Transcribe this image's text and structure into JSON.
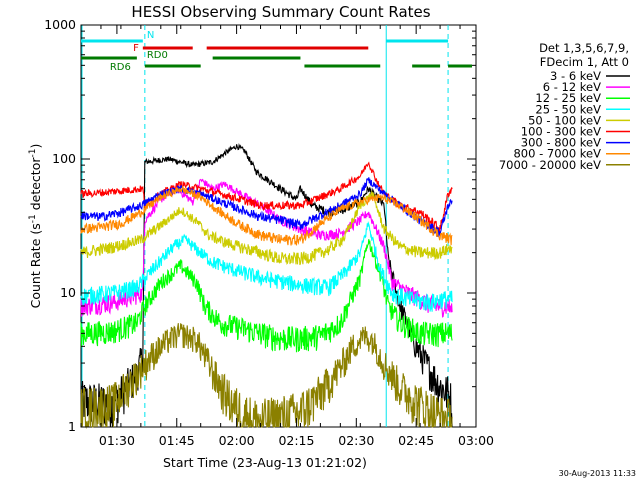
{
  "chart_data": {
    "type": "line",
    "title": "HESSI Observing Summary Count Rates",
    "xlabel": "Start Time (23-Aug-13 01:21:02)",
    "ylabel": "Count Rate (s",
    "ylabel_sup1": "-1",
    "ylabel_mid": " detector",
    "ylabel_sup2": "-1",
    "ylabel_end": ")",
    "yscale": "log",
    "ylim": [
      1,
      1000
    ],
    "xlim_minutes": [
      0,
      99
    ],
    "x_ticks": [
      {
        "t": 9,
        "label": "01:30"
      },
      {
        "t": 24,
        "label": "01:45"
      },
      {
        "t": 39,
        "label": "02:00"
      },
      {
        "t": 54,
        "label": "02:15"
      },
      {
        "t": 69,
        "label": "02:30"
      },
      {
        "t": 84,
        "label": "02:45"
      },
      {
        "t": 99,
        "label": "03:00"
      }
    ],
    "y_ticks": [
      {
        "v": 1,
        "label": "1"
      },
      {
        "v": 10,
        "label": "10"
      },
      {
        "v": 100,
        "label": "100"
      },
      {
        "v": 1000,
        "label": "1000"
      }
    ],
    "legend_header": [
      "Det 1,3,5,6,7,9,",
      "FDecim 1, Att 0"
    ],
    "timestamp": "30-Aug-2013 11:33",
    "night_lines_t": [
      16,
      76.5,
      92
    ],
    "flag_bars": [
      {
        "label": "N",
        "color": "#00e5ee",
        "segments": [
          [
            0,
            15.5
          ],
          [
            76.5,
            92
          ]
        ]
      },
      {
        "label": "F",
        "color": "#e00000",
        "segments": [
          [
            15.5,
            28
          ],
          [
            31.5,
            72
          ]
        ]
      },
      {
        "label": "RD0",
        "color": "#007a00",
        "segments": [
          [
            0,
            14
          ],
          [
            33,
            55
          ]
        ]
      },
      {
        "label": "RD6",
        "color": "#007a00",
        "segments": [
          [
            16,
            30
          ],
          [
            56,
            75
          ],
          [
            83,
            90
          ],
          [
            92,
            98
          ]
        ]
      }
    ],
    "series": [
      {
        "name": "3 - 6 keV",
        "color": "#000000",
        "x": [
          0,
          8,
          14,
          15.5,
          16,
          22,
          28,
          33,
          36,
          39,
          41,
          44,
          50,
          54,
          55,
          58,
          62,
          66,
          70,
          72,
          76,
          77,
          80,
          84,
          88,
          90,
          92,
          93
        ],
        "y": [
          1.6,
          1.5,
          2.5,
          3.5,
          95,
          100,
          90,
          95,
          110,
          125,
          115,
          80,
          60,
          50,
          60,
          45,
          40,
          42,
          48,
          60,
          45,
          18,
          8,
          4,
          2.5,
          2,
          1.8,
          1.5
        ]
      },
      {
        "name": "6 - 12 keV",
        "color": "#ff00ff",
        "x": [
          0,
          8,
          15.5,
          16,
          20,
          24,
          28,
          30,
          33,
          36,
          40,
          45,
          50,
          55,
          60,
          65,
          70,
          72,
          74,
          76,
          78,
          82,
          88,
          92,
          93
        ],
        "y": [
          8,
          8.5,
          10,
          35,
          50,
          60,
          48,
          70,
          60,
          65,
          55,
          45,
          35,
          30,
          27,
          28,
          35,
          40,
          30,
          22,
          12,
          10,
          8,
          8,
          7.5
        ]
      },
      {
        "name": "12 - 25 keV",
        "color": "#00ff00",
        "x": [
          0,
          8,
          14,
          16,
          20,
          25,
          29,
          31,
          35,
          40,
          45,
          50,
          55,
          60,
          65,
          70,
          72,
          75,
          77,
          80,
          85,
          90,
          93
        ],
        "y": [
          5,
          5.2,
          6,
          8,
          12,
          16,
          12,
          8,
          6,
          5.5,
          5,
          4.6,
          4.6,
          4.8,
          6,
          13,
          25,
          14,
          8,
          6,
          5,
          5,
          5
        ]
      },
      {
        "name": "25 - 50 keV",
        "color": "#00ffff",
        "x": [
          0,
          8,
          14,
          18,
          23,
          26,
          30,
          33,
          38,
          45,
          55,
          62,
          66,
          70,
          72,
          75,
          78,
          82,
          88,
          90,
          93
        ],
        "y": [
          9.5,
          10,
          11,
          15,
          22,
          25,
          20,
          17,
          15,
          13,
          11.5,
          11,
          14,
          20,
          33,
          15,
          10,
          9,
          8.5,
          9,
          9
        ]
      },
      {
        "name": "50 - 100 keV",
        "color": "#cccc00",
        "x": [
          0,
          8,
          15,
          20,
          25,
          29,
          32,
          36,
          40,
          45,
          50,
          55,
          58,
          62,
          66,
          70,
          73,
          76,
          80,
          85,
          90,
          93
        ],
        "y": [
          20,
          22,
          25,
          32,
          42,
          34,
          27,
          24,
          22,
          20,
          18,
          18,
          19,
          21,
          26,
          45,
          55,
          30,
          22,
          20,
          20,
          22
        ]
      },
      {
        "name": "100 - 300 keV",
        "color": "#ff0000",
        "x": [
          0,
          5,
          10,
          15.5,
          16,
          20,
          25,
          30,
          35,
          40,
          45,
          50,
          55,
          60,
          65,
          70,
          72,
          74,
          76,
          80,
          85,
          90,
          92,
          93
        ],
        "y": [
          55,
          56,
          58,
          60,
          45,
          55,
          65,
          60,
          55,
          50,
          45,
          45,
          45,
          52,
          60,
          75,
          95,
          70,
          55,
          45,
          40,
          30,
          55,
          60
        ]
      },
      {
        "name": "300 - 800 keV",
        "color": "#0000ff",
        "x": [
          0,
          5,
          10,
          15,
          20,
          25,
          30,
          35,
          40,
          45,
          50,
          55,
          60,
          65,
          70,
          72,
          76,
          80,
          85,
          90,
          92,
          93
        ],
        "y": [
          38,
          37,
          40,
          45,
          55,
          60,
          55,
          48,
          42,
          37,
          35,
          32,
          38,
          45,
          55,
          70,
          55,
          45,
          35,
          28,
          45,
          48
        ]
      },
      {
        "name": "800 - 7000 keV",
        "color": "#ff8800",
        "x": [
          0,
          5,
          10,
          15,
          20,
          25,
          30,
          35,
          40,
          45,
          50,
          55,
          60,
          65,
          70,
          75,
          80,
          85,
          90,
          93
        ],
        "y": [
          30,
          31,
          33,
          40,
          52,
          60,
          52,
          40,
          32,
          27,
          25,
          25,
          33,
          42,
          48,
          52,
          45,
          35,
          27,
          25
        ]
      },
      {
        "name": "7000 - 20000 keV",
        "color": "#8b8000",
        "x": [
          0,
          8,
          14,
          18,
          22,
          25,
          29,
          32,
          35,
          38,
          42,
          45,
          50,
          55,
          60,
          65,
          68,
          71,
          73,
          76,
          80,
          85,
          88,
          90,
          93
        ],
        "y": [
          1.4,
          1.5,
          2.5,
          3.5,
          4.5,
          5,
          4.5,
          3,
          2,
          1.5,
          1.2,
          1.1,
          1.2,
          1.3,
          1.8,
          2.8,
          4,
          4.8,
          4.5,
          3,
          2,
          1.5,
          1.3,
          1.2,
          1.1
        ]
      }
    ]
  }
}
